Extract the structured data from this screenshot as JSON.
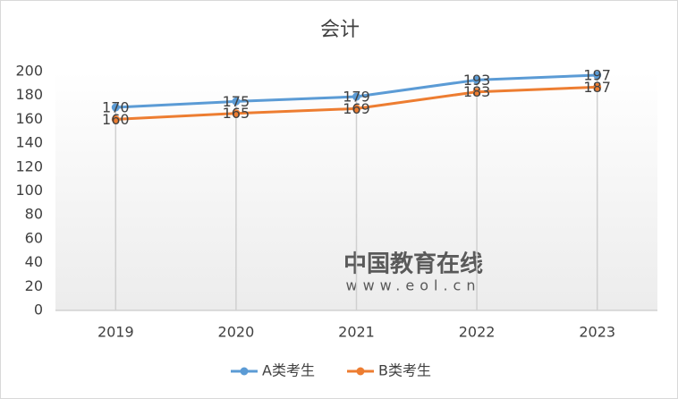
{
  "chart_data": {
    "type": "line",
    "title": "会计",
    "categories": [
      "2019",
      "2020",
      "2021",
      "2022",
      "2023"
    ],
    "series": [
      {
        "name": "A类考生",
        "color": "#5b9bd5",
        "values": [
          170,
          175,
          179,
          193,
          197
        ]
      },
      {
        "name": "B类考生",
        "color": "#ed7d31",
        "values": [
          160,
          165,
          169,
          183,
          187
        ]
      }
    ],
    "ylim": [
      0,
      200
    ],
    "yticks": [
      0,
      20,
      40,
      60,
      80,
      100,
      120,
      140,
      160,
      180,
      200
    ],
    "drop_lines": true,
    "legend": "bottom",
    "watermark": [
      "中国教育在线",
      "www.eol.cn"
    ]
  }
}
